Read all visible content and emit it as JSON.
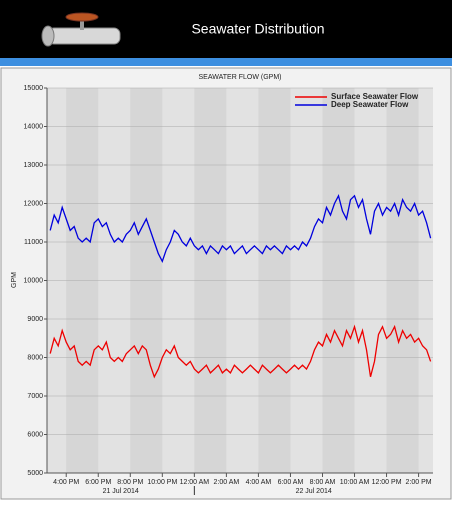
{
  "header": {
    "title": "Seawater Distribution"
  },
  "chart_data": {
    "type": "line",
    "title": "SEAWATER FLOW (GPM)",
    "y_label": "GPM",
    "x": [
      15,
      15.25,
      15.5,
      15.75,
      16,
      16.25,
      16.5,
      16.75,
      17,
      17.25,
      17.5,
      17.75,
      18,
      18.25,
      18.5,
      18.75,
      19,
      19.25,
      19.5,
      19.75,
      20,
      20.25,
      20.5,
      20.75,
      21,
      21.25,
      21.5,
      21.75,
      22,
      22.25,
      22.5,
      22.75,
      23,
      23.25,
      23.5,
      23.75,
      24,
      24.25,
      24.5,
      24.75,
      25,
      25.25,
      25.5,
      25.75,
      26,
      26.25,
      26.5,
      26.75,
      27,
      27.25,
      27.5,
      27.75,
      28,
      28.25,
      28.5,
      28.75,
      29,
      29.25,
      29.5,
      29.75,
      30,
      30.25,
      30.5,
      30.75,
      31,
      31.25,
      31.5,
      31.75,
      32,
      32.25,
      32.5,
      32.75,
      33,
      33.25,
      33.5,
      33.75,
      34,
      34.25,
      34.5,
      34.75,
      35,
      35.25,
      35.5,
      35.75,
      36,
      36.25,
      36.5,
      36.75,
      37,
      37.25,
      37.5,
      37.75,
      38,
      38.25,
      38.5,
      38.75
    ],
    "series": [
      {
        "name": "Surface Seawater Flow",
        "color": "#ee0000",
        "values": [
          8100,
          8500,
          8300,
          8700,
          8400,
          8200,
          8300,
          7900,
          7800,
          7900,
          7800,
          8200,
          8300,
          8200,
          8400,
          8000,
          7900,
          8000,
          7900,
          8100,
          8200,
          8300,
          8100,
          8300,
          8200,
          7800,
          7500,
          7700,
          8000,
          8200,
          8100,
          8300,
          8000,
          7900,
          7800,
          7900,
          7700,
          7600,
          7700,
          7800,
          7600,
          7700,
          7800,
          7600,
          7700,
          7600,
          7800,
          7700,
          7600,
          7700,
          7800,
          7700,
          7600,
          7800,
          7700,
          7600,
          7700,
          7800,
          7700,
          7600,
          7700,
          7800,
          7700,
          7800,
          7700,
          7900,
          8200,
          8400,
          8300,
          8600,
          8400,
          8700,
          8500,
          8300,
          8700,
          8500,
          8800,
          8400,
          8700,
          8200,
          7500,
          7900,
          8600,
          8800,
          8500,
          8600,
          8800,
          8400,
          8700,
          8500,
          8600,
          8400,
          8500,
          8300,
          8200,
          7900
        ]
      },
      {
        "name": "Deep Seawater Flow",
        "color": "#0000dd",
        "values": [
          11300,
          11700,
          11500,
          11900,
          11600,
          11300,
          11400,
          11100,
          11000,
          11100,
          11000,
          11500,
          11600,
          11400,
          11500,
          11200,
          11000,
          11100,
          11000,
          11200,
          11300,
          11500,
          11200,
          11400,
          11600,
          11300,
          11000,
          10700,
          10500,
          10800,
          11000,
          11300,
          11200,
          11000,
          10900,
          11100,
          10900,
          10800,
          10900,
          10700,
          10900,
          10800,
          10700,
          10900,
          10800,
          10900,
          10700,
          10800,
          10900,
          10700,
          10800,
          10900,
          10800,
          10700,
          10900,
          10800,
          10900,
          10800,
          10700,
          10900,
          10800,
          10900,
          10800,
          11000,
          10900,
          11100,
          11400,
          11600,
          11500,
          11900,
          11700,
          12000,
          12200,
          11800,
          11600,
          12100,
          12200,
          11900,
          12100,
          11600,
          11200,
          11800,
          12000,
          11700,
          11900,
          11800,
          12000,
          11700,
          12100,
          11900,
          11800,
          12000,
          11700,
          11800,
          11500,
          11100
        ]
      }
    ],
    "xlim": [
      14.8,
      38.9
    ],
    "xticks": [
      {
        "value": 16,
        "label": "4:00 PM"
      },
      {
        "value": 18,
        "label": "6:00 PM"
      },
      {
        "value": 20,
        "label": "8:00 PM"
      },
      {
        "value": 22,
        "label": "10:00 PM"
      },
      {
        "value": 24,
        "label": "12:00 AM"
      },
      {
        "value": 26,
        "label": "2:00 AM"
      },
      {
        "value": 28,
        "label": "4:00 AM"
      },
      {
        "value": 30,
        "label": "6:00 AM"
      },
      {
        "value": 32,
        "label": "8:00 AM"
      },
      {
        "value": 34,
        "label": "10:00 AM"
      },
      {
        "value": 36,
        "label": "12:00 PM"
      },
      {
        "value": 38,
        "label": "2:00 PM"
      }
    ],
    "x_separators": [
      24
    ],
    "date_labels": [
      "21 Jul 2014",
      "22 Jul 2014"
    ],
    "ylim": [
      5000,
      15000
    ],
    "yticks": [
      5000,
      6000,
      7000,
      8000,
      9000,
      10000,
      11000,
      12000,
      13000,
      14000,
      15000
    ],
    "grid": true,
    "legend": "upper right"
  }
}
